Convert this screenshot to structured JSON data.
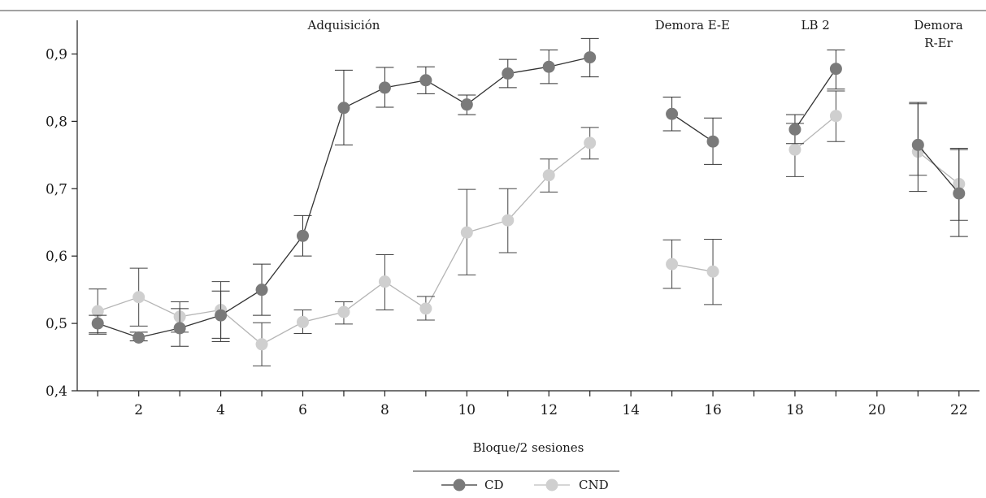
{
  "chart_data": {
    "type": "line",
    "xlabel": "Bloque/2 sesiones",
    "ylabel": "",
    "xlim": [
      0.5,
      22.5
    ],
    "ylim": [
      0.4,
      0.95
    ],
    "x_ticks": [
      2,
      4,
      6,
      8,
      10,
      12,
      14,
      16,
      18,
      20,
      22
    ],
    "x_tick_labels": [
      "2",
      "4",
      "6",
      "8",
      "10",
      "12",
      "14",
      "16",
      "18",
      "20",
      "22"
    ],
    "y_ticks": [
      0.4,
      0.5,
      0.6,
      0.7,
      0.8,
      0.9
    ],
    "y_tick_labels": [
      "0,4",
      "0,5",
      "0,6",
      "0,7",
      "0,8",
      "0,9"
    ],
    "grid": false,
    "legend_position": "bottom-center",
    "sections": [
      {
        "lines": [
          "Adquisición"
        ],
        "x": 7
      },
      {
        "lines": [
          "Demora E-E"
        ],
        "x": 15.5
      },
      {
        "lines": [
          "LB 2"
        ],
        "x": 18.5
      },
      {
        "lines": [
          "Demora",
          "R-Er"
        ],
        "x": 21.5
      }
    ],
    "series": [
      {
        "name": "CD",
        "color": "#7a7a7a",
        "segments": [
          [
            {
              "x": 1,
              "y": 0.5,
              "lo": 0.486,
              "hi": 0.512
            },
            {
              "x": 2,
              "y": 0.479,
              "lo": 0.474,
              "hi": 0.487
            },
            {
              "x": 3,
              "y": 0.493,
              "lo": 0.466,
              "hi": 0.522
            },
            {
              "x": 4,
              "y": 0.512,
              "lo": 0.478,
              "hi": 0.548
            },
            {
              "x": 5,
              "y": 0.55,
              "lo": 0.512,
              "hi": 0.588
            },
            {
              "x": 6,
              "y": 0.63,
              "lo": 0.6,
              "hi": 0.66
            },
            {
              "x": 7,
              "y": 0.82,
              "lo": 0.765,
              "hi": 0.876
            },
            {
              "x": 8,
              "y": 0.85,
              "lo": 0.821,
              "hi": 0.88
            },
            {
              "x": 9,
              "y": 0.861,
              "lo": 0.841,
              "hi": 0.881
            },
            {
              "x": 10,
              "y": 0.825,
              "lo": 0.81,
              "hi": 0.839
            },
            {
              "x": 11,
              "y": 0.871,
              "lo": 0.85,
              "hi": 0.892
            },
            {
              "x": 12,
              "y": 0.881,
              "lo": 0.856,
              "hi": 0.906
            },
            {
              "x": 13,
              "y": 0.895,
              "lo": 0.866,
              "hi": 0.923
            }
          ],
          [
            {
              "x": 15,
              "y": 0.811,
              "lo": 0.786,
              "hi": 0.836
            },
            {
              "x": 16,
              "y": 0.77,
              "lo": 0.736,
              "hi": 0.805
            }
          ],
          [
            {
              "x": 18,
              "y": 0.788,
              "lo": 0.767,
              "hi": 0.81
            },
            {
              "x": 19,
              "y": 0.878,
              "lo": 0.848,
              "hi": 0.906
            }
          ],
          [
            {
              "x": 21,
              "y": 0.765,
              "lo": 0.696,
              "hi": 0.828
            },
            {
              "x": 22,
              "y": 0.693,
              "lo": 0.629,
              "hi": 0.758
            }
          ]
        ]
      },
      {
        "name": "CND",
        "color": "#cfcfcf",
        "segments": [
          [
            {
              "x": 1,
              "y": 0.518,
              "lo": 0.484,
              "hi": 0.551
            },
            {
              "x": 2,
              "y": 0.539,
              "lo": 0.496,
              "hi": 0.582
            },
            {
              "x": 3,
              "y": 0.51,
              "lo": 0.487,
              "hi": 0.532
            },
            {
              "x": 4,
              "y": 0.52,
              "lo": 0.473,
              "hi": 0.562
            },
            {
              "x": 5,
              "y": 0.469,
              "lo": 0.437,
              "hi": 0.501
            },
            {
              "x": 6,
              "y": 0.502,
              "lo": 0.485,
              "hi": 0.52
            },
            {
              "x": 7,
              "y": 0.517,
              "lo": 0.499,
              "hi": 0.532
            },
            {
              "x": 8,
              "y": 0.562,
              "lo": 0.52,
              "hi": 0.602
            },
            {
              "x": 9,
              "y": 0.522,
              "lo": 0.505,
              "hi": 0.54
            },
            {
              "x": 10,
              "y": 0.635,
              "lo": 0.572,
              "hi": 0.699
            },
            {
              "x": 11,
              "y": 0.653,
              "lo": 0.605,
              "hi": 0.7
            },
            {
              "x": 12,
              "y": 0.72,
              "lo": 0.695,
              "hi": 0.744
            },
            {
              "x": 13,
              "y": 0.768,
              "lo": 0.744,
              "hi": 0.791
            }
          ],
          [
            {
              "x": 15,
              "y": 0.588,
              "lo": 0.552,
              "hi": 0.624
            },
            {
              "x": 16,
              "y": 0.577,
              "lo": 0.528,
              "hi": 0.625
            }
          ],
          [
            {
              "x": 18,
              "y": 0.758,
              "lo": 0.718,
              "hi": 0.797
            },
            {
              "x": 19,
              "y": 0.808,
              "lo": 0.77,
              "hi": 0.845
            }
          ],
          [
            {
              "x": 21,
              "y": 0.755,
              "lo": 0.72,
              "hi": 0.826
            },
            {
              "x": 22,
              "y": 0.707,
              "lo": 0.653,
              "hi": 0.76
            }
          ]
        ]
      }
    ]
  }
}
